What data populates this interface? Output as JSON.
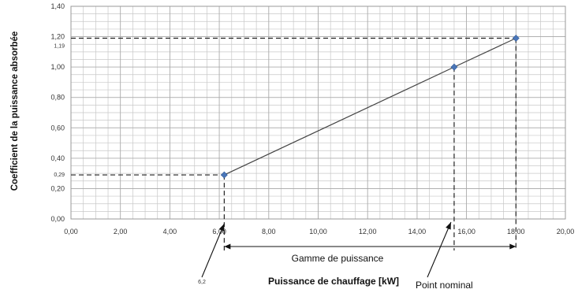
{
  "chart_data": {
    "type": "line",
    "xlabel": "Puissance de chauffage [kW]",
    "ylabel": "Coefficient de la puissance absorbée",
    "xlim": [
      0,
      20
    ],
    "ylim": [
      0,
      1.4
    ],
    "x_ticks": [
      "0,00",
      "2,00",
      "4,00",
      "6,00",
      "8,00",
      "10,00",
      "12,00",
      "14,00",
      "16,00",
      "18,00",
      "20,00"
    ],
    "y_ticks": [
      "0,00",
      "0,20",
      "0,40",
      "0,60",
      "0,80",
      "1,00",
      "1,20",
      "1,40"
    ],
    "grid": true,
    "series": [
      {
        "points": [
          {
            "x": 6.2,
            "y": 0.29
          },
          {
            "x": 15.5,
            "y": 1.0
          },
          {
            "x": 18.0,
            "y": 1.19
          }
        ]
      }
    ],
    "reference_lines": [
      {
        "y": 0.29,
        "label": "0,29"
      },
      {
        "y": 1.19,
        "label": "1,19"
      }
    ],
    "annotations": {
      "range_label": "Gamme de puissance",
      "start_label": "6,2",
      "nominal_label": "Point nominal"
    },
    "colors": {
      "marker": "#4a76b8",
      "line": "#444444",
      "grid": "#c8c8c8"
    }
  }
}
